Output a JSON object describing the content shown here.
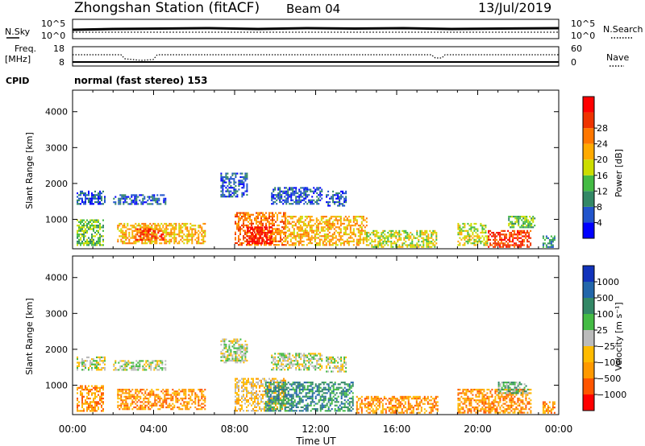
{
  "header": {
    "title": "Zhongshan Station (fitACF)",
    "beam": "Beam 04",
    "date": "13/Jul/2019"
  },
  "aux": {
    "nsky_label": "N.Sky",
    "nsky_ticks": [
      "10^5",
      "10^0"
    ],
    "nsearch_label": "N.Search",
    "nsearch_ticks": [
      "10^5",
      "10^0"
    ],
    "freq_label": [
      "Freq.",
      "[MHz]"
    ],
    "freq_ticks": [
      "18",
      "8"
    ],
    "nave_label": "Nave",
    "nave_ticks": [
      "60",
      "0"
    ],
    "cpid_label": "CPID",
    "cpid_text": "normal (fast stereo) 153"
  },
  "chart_data": [
    {
      "type": "heatmap",
      "name": "power",
      "xlabel": "Time UT",
      "ylabel": "Slant Range [km]",
      "xticks": [
        "00:00",
        "04:00",
        "08:00",
        "12:00",
        "16:00",
        "20:00",
        "00:00"
      ],
      "xlim_hours": [
        0,
        24
      ],
      "ylim": [
        180,
        4600
      ],
      "yticks": [
        1000,
        2000,
        3000,
        4000
      ],
      "colorbar": {
        "label": "Power [dB]",
        "ticks": [
          "4",
          "8",
          "12",
          "16",
          "20",
          "24",
          "28"
        ],
        "colors": [
          "#0000ff",
          "#2255cc",
          "#338866",
          "#44bb44",
          "#ccdd00",
          "#ffaa00",
          "#ff7700",
          "#ee3300",
          "#ff0000"
        ]
      },
      "regions": [
        {
          "t0": 0.2,
          "t1": 1.6,
          "r0": 1450,
          "r1": 1800,
          "level": 1
        },
        {
          "t0": 2.0,
          "t1": 4.6,
          "r0": 1450,
          "r1": 1700,
          "level": 1
        },
        {
          "t0": 7.3,
          "t1": 8.6,
          "r0": 1650,
          "r1": 2300,
          "level": 1
        },
        {
          "t0": 9.8,
          "t1": 12.3,
          "r0": 1450,
          "r1": 1900,
          "level": 1
        },
        {
          "t0": 12.5,
          "t1": 13.5,
          "r0": 1400,
          "r1": 1800,
          "level": 1
        },
        {
          "t0": 0.2,
          "t1": 1.5,
          "r0": 300,
          "r1": 1000,
          "level": 3
        },
        {
          "t0": 2.2,
          "t1": 6.5,
          "r0": 350,
          "r1": 900,
          "level": 5
        },
        {
          "t0": 3.0,
          "t1": 4.5,
          "r0": 450,
          "r1": 750,
          "level": 7
        },
        {
          "t0": 8.0,
          "t1": 10.5,
          "r0": 300,
          "r1": 1200,
          "level": 6
        },
        {
          "t0": 8.6,
          "t1": 9.8,
          "r0": 350,
          "r1": 800,
          "level": 8
        },
        {
          "t0": 10.5,
          "t1": 14.5,
          "r0": 300,
          "r1": 1100,
          "level": 5
        },
        {
          "t0": 14.5,
          "t1": 18.0,
          "r0": 250,
          "r1": 700,
          "level": 4
        },
        {
          "t0": 19.0,
          "t1": 20.5,
          "r0": 300,
          "r1": 900,
          "level": 4
        },
        {
          "t0": 20.5,
          "t1": 22.6,
          "r0": 250,
          "r1": 700,
          "level": 7
        },
        {
          "t0": 21.5,
          "t1": 22.8,
          "r0": 800,
          "r1": 1100,
          "level": 3
        },
        {
          "t0": 23.2,
          "t1": 23.8,
          "r0": 250,
          "r1": 550,
          "level": 2
        }
      ]
    },
    {
      "type": "heatmap",
      "name": "velocity",
      "xlabel": "Time UT",
      "ylabel": "Slant Range [km]",
      "xticks": [
        "00:00",
        "04:00",
        "08:00",
        "12:00",
        "16:00",
        "20:00",
        "00:00"
      ],
      "xlim_hours": [
        0,
        24
      ],
      "ylim": [
        180,
        4600
      ],
      "yticks": [
        1000,
        2000,
        3000,
        4000
      ],
      "colorbar": {
        "label": "Velocity [m s⁻¹]",
        "ticks": [
          "1000",
          "500",
          "100",
          "25",
          "−25",
          "−100",
          "−500",
          "−1000"
        ],
        "colors": [
          "#1133bb",
          "#2266aa",
          "#338866",
          "#44bb44",
          "#bbbbbb",
          "#ffbb00",
          "#ff9900",
          "#ff5500",
          "#ff0000"
        ]
      },
      "regions": [
        {
          "t0": 0.2,
          "t1": 1.6,
          "r0": 1450,
          "r1": 1800,
          "level": 4
        },
        {
          "t0": 2.0,
          "t1": 4.6,
          "r0": 1450,
          "r1": 1700,
          "level": 4
        },
        {
          "t0": 7.3,
          "t1": 8.6,
          "r0": 1650,
          "r1": 2300,
          "level": 4
        },
        {
          "t0": 9.8,
          "t1": 12.3,
          "r0": 1450,
          "r1": 1900,
          "level": 4
        },
        {
          "t0": 12.5,
          "t1": 13.5,
          "r0": 1400,
          "r1": 1800,
          "level": 4
        },
        {
          "t0": 0.2,
          "t1": 1.5,
          "r0": 300,
          "r1": 1000,
          "level": 6
        },
        {
          "t0": 2.2,
          "t1": 6.5,
          "r0": 350,
          "r1": 900,
          "level": 6
        },
        {
          "t0": 8.0,
          "t1": 10.5,
          "r0": 300,
          "r1": 1200,
          "level": 5
        },
        {
          "t0": 9.5,
          "t1": 13.8,
          "r0": 300,
          "r1": 1100,
          "level": 2
        },
        {
          "t0": 14.0,
          "t1": 18.0,
          "r0": 250,
          "r1": 700,
          "level": 6
        },
        {
          "t0": 19.0,
          "t1": 22.6,
          "r0": 250,
          "r1": 900,
          "level": 6
        },
        {
          "t0": 21.0,
          "t1": 22.5,
          "r0": 800,
          "r1": 1100,
          "level": 3
        },
        {
          "t0": 23.2,
          "t1": 23.8,
          "r0": 250,
          "r1": 550,
          "level": 6
        }
      ]
    }
  ]
}
